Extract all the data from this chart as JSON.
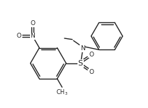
{
  "bg_color": "#ffffff",
  "line_color": "#222222",
  "line_width": 1.0,
  "font_size": 6.5,
  "figsize": [
    2.12,
    1.55
  ],
  "dpi": 100,
  "xlim": [
    0,
    10
  ],
  "ylim": [
    0,
    7.5
  ]
}
